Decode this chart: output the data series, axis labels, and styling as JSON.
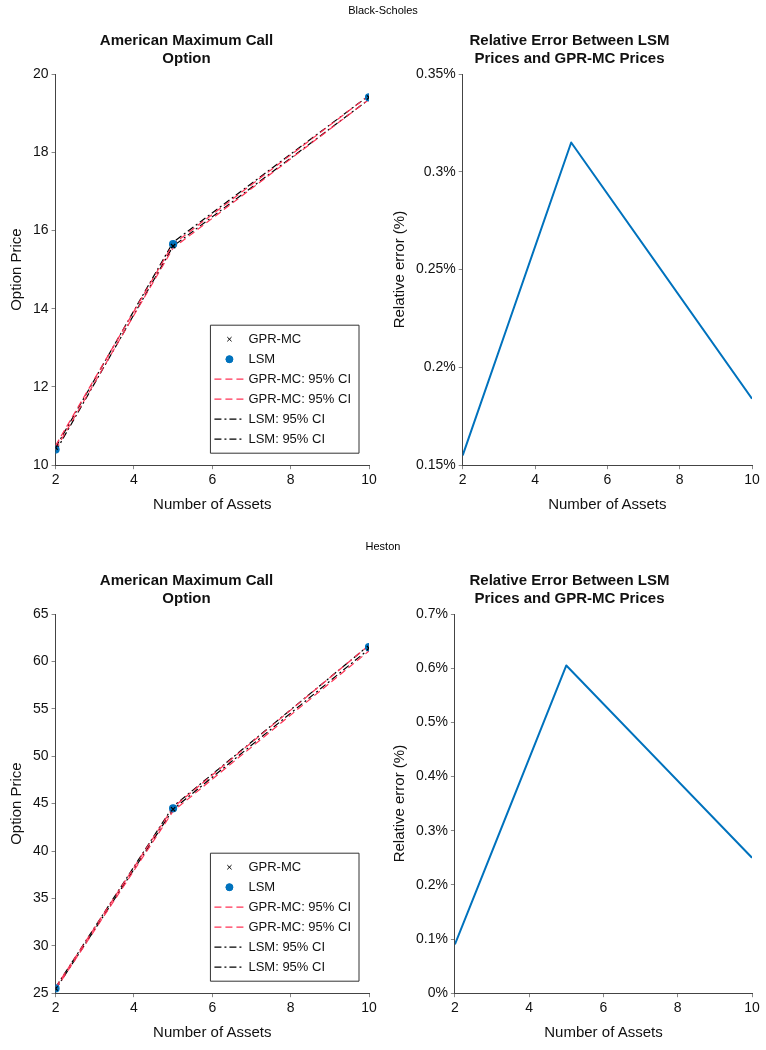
{
  "chart_data": [
    {
      "type": "line",
      "title": "American Maximum Call Option",
      "annotations": [
        "Black-Scholes"
      ],
      "xlabel": "Number of Assets",
      "ylabel": "Option Price",
      "x": [
        2,
        5,
        10
      ],
      "xlim": [
        2,
        10
      ],
      "xticks": [
        2,
        4,
        6,
        8,
        10
      ],
      "ylim": [
        10,
        20
      ],
      "yticks": [
        10,
        12,
        14,
        16,
        18,
        20
      ],
      "grid": false,
      "legend": "bottom right",
      "series": [
        {
          "name": "GPR-MC",
          "type": "scatter",
          "marker": "cross",
          "color": "#000000",
          "values": [
            10.45,
            15.6,
            19.4
          ]
        },
        {
          "name": "LSM",
          "type": "scatter",
          "marker": "circle",
          "color": "#0072bd",
          "values": [
            10.4,
            15.65,
            19.4
          ]
        },
        {
          "name": "GPR-MC: 95% CI",
          "type": "line",
          "marker": "none",
          "line_style": "dashed",
          "color": "#ff3355",
          "values": [
            10.4,
            15.55,
            19.35
          ]
        },
        {
          "name": "GPR-MC: 95% CI",
          "type": "line",
          "marker": "none",
          "line_style": "dashed",
          "color": "#ff3355",
          "values": [
            10.5,
            15.65,
            19.45
          ]
        },
        {
          "name": "LSM: 95% CI",
          "type": "line",
          "marker": "none",
          "line_style": "dashdot",
          "color": "#000000",
          "values": [
            10.35,
            15.6,
            19.35
          ]
        },
        {
          "name": "LSM: 95% CI",
          "type": "line",
          "marker": "none",
          "line_style": "dashdot",
          "color": "#000000",
          "values": [
            10.45,
            15.7,
            19.45
          ]
        }
      ]
    },
    {
      "type": "line",
      "title": "Relative Error Between LSM Prices and GPR-MC Prices",
      "xlabel": "Number of Assets",
      "ylabel": "Relative error (%)",
      "x": [
        2,
        5,
        10
      ],
      "xlim": [
        2,
        10
      ],
      "xticks": [
        2,
        4,
        6,
        8,
        10
      ],
      "ylim": [
        0.15,
        0.35
      ],
      "yticks": [
        {
          "value": 0.15,
          "label": "0.15%"
        },
        {
          "value": 0.2,
          "label": "0.2%"
        },
        {
          "value": 0.25,
          "label": "0.25%"
        },
        {
          "value": 0.3,
          "label": "0.3%"
        },
        {
          "value": 0.35,
          "label": "0.35%"
        }
      ],
      "grid": false,
      "marker": "none",
      "series": [
        {
          "color": "#0072bd",
          "values": [
            0.155,
            0.315,
            0.184
          ]
        }
      ]
    },
    {
      "type": "line",
      "title": "American Maximum Call Option",
      "annotations": [
        "Heston"
      ],
      "xlabel": "Number of Assets",
      "ylabel": "Option Price",
      "x": [
        2,
        5,
        10
      ],
      "xlim": [
        2,
        10
      ],
      "xticks": [
        2,
        4,
        6,
        8,
        10
      ],
      "ylim": [
        25,
        65
      ],
      "yticks": [
        25,
        30,
        35,
        40,
        45,
        50,
        55,
        60,
        65
      ],
      "grid": false,
      "legend": "bottom right",
      "series": [
        {
          "name": "GPR-MC",
          "type": "scatter",
          "marker": "cross",
          "color": "#000000",
          "values": [
            25.5,
            44.4,
            61.4
          ]
        },
        {
          "name": "LSM",
          "type": "scatter",
          "marker": "circle",
          "color": "#0072bd",
          "values": [
            25.5,
            44.5,
            61.5
          ]
        },
        {
          "name": "GPR-MC: 95% CI",
          "type": "line",
          "marker": "none",
          "line_style": "dashed",
          "color": "#ff3355",
          "values": [
            25.4,
            44.2,
            61.1
          ]
        },
        {
          "name": "GPR-MC: 95% CI",
          "type": "line",
          "marker": "none",
          "line_style": "dashed",
          "color": "#ff3355",
          "values": [
            25.6,
            44.6,
            61.7
          ]
        },
        {
          "name": "LSM: 95% CI",
          "type": "line",
          "marker": "none",
          "line_style": "dashdot",
          "color": "#000000",
          "values": [
            25.4,
            44.4,
            61.3
          ]
        },
        {
          "name": "LSM: 95% CI",
          "type": "line",
          "marker": "none",
          "line_style": "dashdot",
          "color": "#000000",
          "values": [
            25.6,
            44.7,
            61.7
          ]
        }
      ]
    },
    {
      "type": "line",
      "title": "Relative Error Between LSM Prices and GPR-MC Prices",
      "xlabel": "Number of Assets",
      "ylabel": "Relative error (%)",
      "x": [
        2,
        5,
        10
      ],
      "xlim": [
        2,
        10
      ],
      "xticks": [
        2,
        4,
        6,
        8,
        10
      ],
      "ylim": [
        0,
        0.7
      ],
      "yticks": [
        {
          "value": 0,
          "label": "0%"
        },
        {
          "value": 0.1,
          "label": "0.1%"
        },
        {
          "value": 0.2,
          "label": "0.2%"
        },
        {
          "value": 0.3,
          "label": "0.3%"
        },
        {
          "value": 0.4,
          "label": "0.4%"
        },
        {
          "value": 0.5,
          "label": "0.5%"
        },
        {
          "value": 0.6,
          "label": "0.6%"
        },
        {
          "value": 0.7,
          "label": "0.7%"
        }
      ],
      "grid": false,
      "marker": "none",
      "series": [
        {
          "color": "#0072bd",
          "values": [
            0.09,
            0.605,
            0.25
          ]
        }
      ]
    }
  ]
}
